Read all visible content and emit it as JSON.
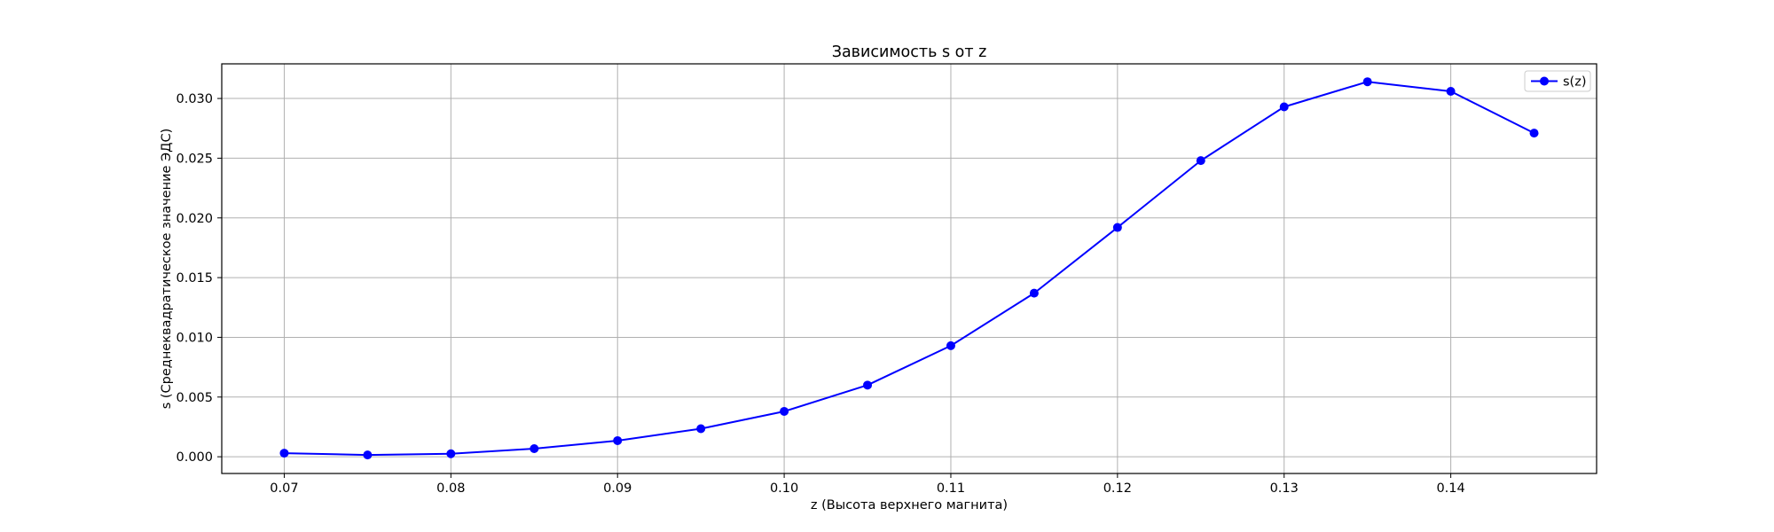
{
  "chart_data": {
    "type": "line",
    "title": "Зависимость s от z",
    "xlabel": "z (Высота верхнего магнита)",
    "ylabel": "s (Среднеквадратическое значение ЭДС)",
    "xlim": [
      0.06625,
      0.14875
    ],
    "ylim": [
      -0.0014,
      0.0329
    ],
    "x_ticks": [
      "0.07",
      "0.08",
      "0.09",
      "0.10",
      "0.11",
      "0.12",
      "0.13",
      "0.14"
    ],
    "y_ticks": [
      "0.000",
      "0.005",
      "0.010",
      "0.015",
      "0.020",
      "0.025",
      "0.030"
    ],
    "grid": true,
    "legend_position": "top-right",
    "series": [
      {
        "name": "s(z)",
        "color": "#0000ff",
        "marker": "circle",
        "x": [
          0.07,
          0.075,
          0.08,
          0.085,
          0.09,
          0.095,
          0.1,
          0.105,
          0.11,
          0.115,
          0.12,
          0.125,
          0.13,
          0.135,
          0.14,
          0.145
        ],
        "y": [
          0.0003,
          0.00015,
          0.00025,
          0.00068,
          0.00135,
          0.00235,
          0.0038,
          0.006,
          0.0093,
          0.0137,
          0.0192,
          0.0248,
          0.0293,
          0.0314,
          0.0306,
          0.0271
        ]
      }
    ]
  }
}
